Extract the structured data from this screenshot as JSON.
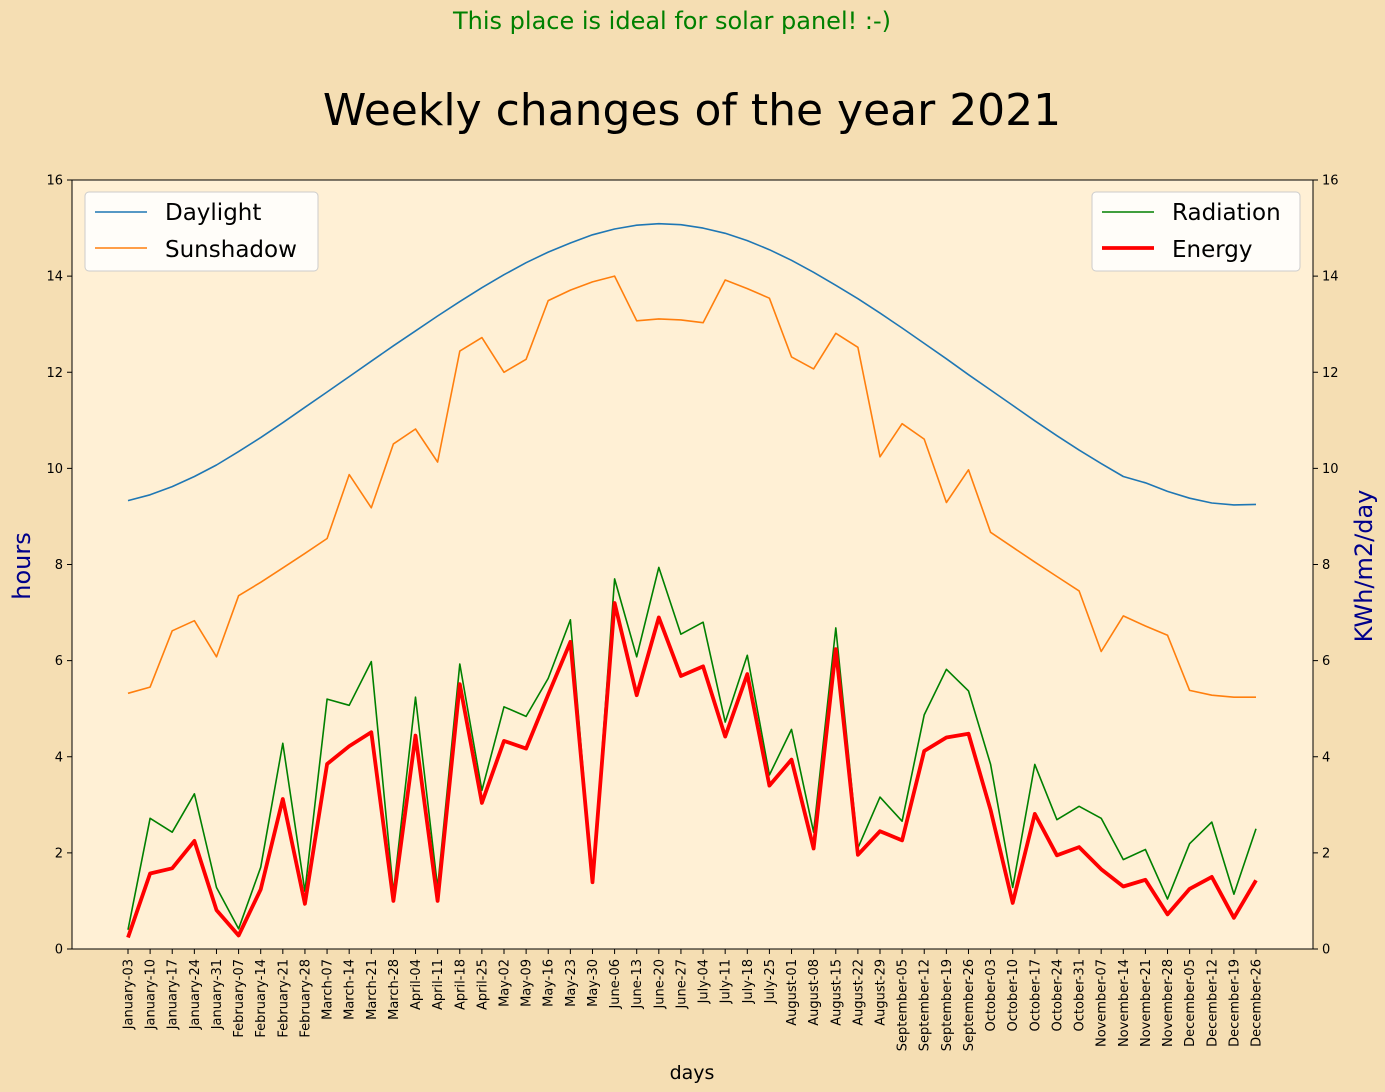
{
  "chart_data": {
    "type": "line",
    "message": "This place is ideal for solar panel! :-)",
    "title": "Weekly changes of the year 2021",
    "xlabel": "days",
    "ylabel_left": "hours",
    "ylabel_right": "KWh/m2/day",
    "ylim_left": [
      0,
      16
    ],
    "ylim_right": [
      0,
      16
    ],
    "yticks": [
      0,
      2,
      4,
      6,
      8,
      10,
      12,
      14,
      16
    ],
    "grid": false,
    "legend_left_position": "upper-left",
    "legend_right_position": "upper-right",
    "categories": [
      "January-03",
      "January-10",
      "January-17",
      "January-24",
      "January-31",
      "February-07",
      "February-14",
      "February-21",
      "February-28",
      "March-07",
      "March-14",
      "March-21",
      "March-28",
      "April-04",
      "April-11",
      "April-18",
      "April-25",
      "May-02",
      "May-09",
      "May-16",
      "May-23",
      "May-30",
      "June-06",
      "June-13",
      "June-20",
      "June-27",
      "July-04",
      "July-11",
      "July-18",
      "July-25",
      "August-01",
      "August-08",
      "August-15",
      "August-22",
      "August-29",
      "September-05",
      "September-12",
      "September-19",
      "September-26",
      "October-03",
      "October-10",
      "October-17",
      "October-24",
      "October-31",
      "November-07",
      "November-14",
      "November-21",
      "November-28",
      "December-05",
      "December-12",
      "December-19",
      "December-26"
    ],
    "series": [
      {
        "name": "Daylight",
        "axis": "left",
        "color": "#1f77b4",
        "width": 1.6,
        "values": [
          9.33,
          9.45,
          9.62,
          9.83,
          10.07,
          10.35,
          10.64,
          10.95,
          11.27,
          11.59,
          11.91,
          12.23,
          12.55,
          12.86,
          13.17,
          13.47,
          13.76,
          14.03,
          14.28,
          14.5,
          14.69,
          14.86,
          14.98,
          15.06,
          15.09,
          15.07,
          15.0,
          14.89,
          14.74,
          14.55,
          14.33,
          14.08,
          13.81,
          13.53,
          13.23,
          12.92,
          12.6,
          12.28,
          11.95,
          11.63,
          11.31,
          10.99,
          10.68,
          10.38,
          10.1,
          9.83,
          9.7,
          9.52,
          9.38,
          9.28,
          9.24,
          9.25
        ]
      },
      {
        "name": "Sunshadow",
        "axis": "left",
        "color": "#ff7f0e",
        "width": 1.6,
        "values": [
          5.32,
          5.45,
          6.62,
          6.83,
          6.08,
          7.35,
          7.63,
          7.93,
          8.23,
          8.54,
          9.87,
          9.18,
          10.51,
          10.82,
          10.13,
          12.44,
          12.72,
          12.0,
          12.27,
          13.49,
          13.71,
          13.88,
          14.0,
          13.07,
          13.11,
          13.09,
          13.03,
          13.92,
          13.74,
          13.54,
          12.32,
          12.07,
          12.81,
          12.52,
          10.24,
          10.93,
          10.61,
          9.29,
          9.97,
          8.67,
          8.36,
          8.05,
          7.75,
          7.45,
          6.19,
          6.93,
          6.72,
          6.53,
          5.38,
          5.28,
          5.24,
          5.24
        ]
      },
      {
        "name": "Radiation",
        "axis": "right",
        "color": "#008000",
        "width": 1.6,
        "values": [
          0.4,
          2.72,
          2.43,
          3.23,
          1.28,
          0.42,
          1.7,
          4.28,
          1.2,
          5.2,
          5.07,
          5.98,
          1.18,
          5.24,
          1.28,
          5.93,
          3.3,
          5.04,
          4.84,
          5.63,
          6.85,
          1.4,
          7.7,
          6.08,
          7.94,
          6.55,
          6.8,
          4.72,
          6.11,
          3.62,
          4.57,
          2.43,
          6.68,
          2.1,
          3.16,
          2.66,
          4.87,
          5.82,
          5.37,
          3.84,
          1.28,
          3.84,
          2.69,
          2.97,
          2.72,
          1.86,
          2.07,
          1.04,
          2.19,
          2.64,
          1.14,
          2.5
        ]
      },
      {
        "name": "Energy",
        "axis": "right",
        "color": "#ff0000",
        "width": 3.8,
        "values": [
          0.24,
          1.57,
          1.68,
          2.25,
          0.81,
          0.28,
          1.24,
          3.12,
          0.94,
          3.85,
          4.22,
          4.51,
          1.0,
          4.44,
          1.0,
          5.51,
          3.04,
          4.33,
          4.17,
          5.29,
          6.39,
          1.39,
          7.2,
          5.28,
          6.9,
          5.68,
          5.88,
          4.42,
          5.72,
          3.4,
          3.94,
          2.09,
          6.24,
          1.96,
          2.45,
          2.26,
          4.12,
          4.4,
          4.48,
          2.89,
          0.96,
          2.81,
          1.95,
          2.12,
          1.66,
          1.3,
          1.44,
          0.72,
          1.25,
          1.5,
          0.65,
          1.43
        ]
      }
    ]
  }
}
